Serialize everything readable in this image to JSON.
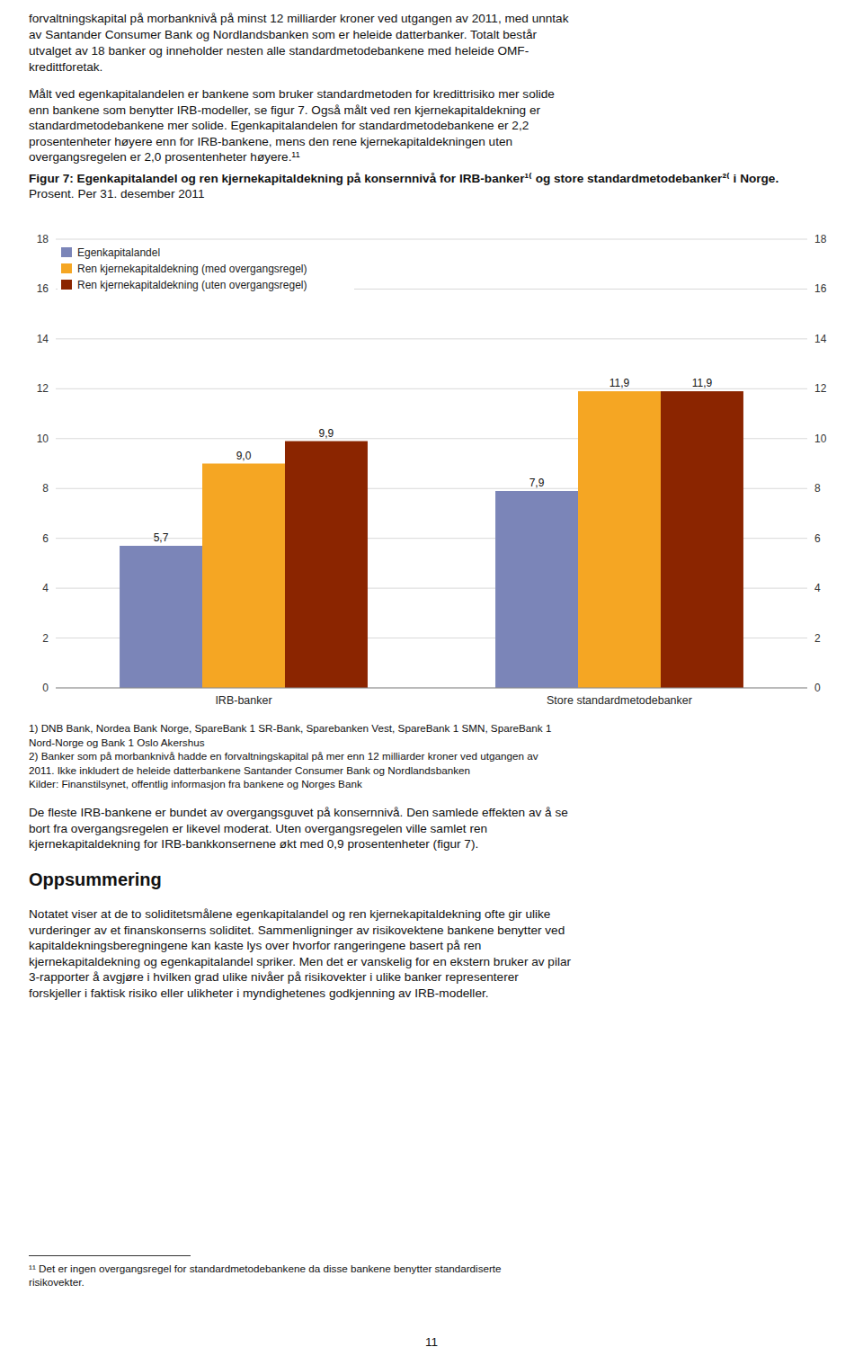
{
  "text_above": [
    "forvaltningskapital på morbanknivå på minst 12 milliarder kroner ved utgangen av 2011, med unntak",
    "av Santander Consumer Bank og Nordlandsbanken som er heleide datterbanker. Totalt består",
    "utvalget av 18 banker og inneholder nesten alle standardmetodebankene med heleide OMF-",
    "kredittforetak."
  ],
  "paragraph1": [
    "Målt ved egenkapitalandelen er bankene som bruker standardmetoden for kredittrisiko mer solide",
    "enn bankene som benytter IRB-modeller, se figur 7. Også målt ved ren kjernekapitaldekning er",
    "standardmetodebankene mer solide. Egenkapitalandelen for standardmetodebankene er 2,2",
    "prosentenheter høyere enn for IRB-bankene, mens den rene kjernekapitaldekningen uten",
    "overgangsregelen er 2,0 prosentenheter høyere.¹¹"
  ],
  "chart_data": {
    "type": "bar",
    "title": "Figur 7: Egenkapitalandel og ren kjernekapitaldekning på konsernnivå for IRB-banker¹⁽ og store standardmetodebanker²⁽ i Norge.",
    "subtitle": "Prosent. Per 31. desember 2011",
    "categories": [
      "IRB-banker",
      "Store standardmetodebanker"
    ],
    "series": [
      {
        "name": "Egenkapitalandel",
        "color": "#7B85B8",
        "values": [
          5.7,
          7.9
        ],
        "value_labels": [
          "5,7",
          "7,9"
        ]
      },
      {
        "name": "Ren kjernekapitaldekning (med overgangsregel)",
        "color": "#F5A623",
        "values": [
          9.0,
          11.9
        ],
        "value_labels": [
          "9,0",
          "11,9"
        ]
      },
      {
        "name": "Ren kjernekapitaldekning (uten overgangsregel)",
        "color": "#8B2500",
        "values": [
          9.9,
          11.9
        ],
        "value_labels": [
          "9,9",
          "11,9"
        ]
      }
    ],
    "ylim": [
      0,
      18
    ],
    "yticks": [
      0,
      2,
      4,
      6,
      8,
      10,
      12,
      14,
      16,
      18
    ],
    "y2lim": [
      0,
      18
    ],
    "y2ticks": [
      0,
      2,
      4,
      6,
      8,
      10,
      12,
      14,
      16,
      18
    ],
    "grid": true,
    "legend": "upper left",
    "data_labels": true,
    "notes": [
      "1) DNB Bank, Nordea Bank Norge, SpareBank 1 SR-Bank, Sparebanken Vest, SpareBank 1 SMN, SpareBank 1",
      "Nord-Norge og Bank 1 Oslo Akershus",
      "2) Banker som på morbanknivå hadde en forvaltningskapital på mer enn 12 milliarder kroner ved utgangen av",
      "2011. Ikke inkludert de heleide datterbankene Santander Consumer Bank og Nordlandsbanken",
      "Kilder: Finanstilsynet, offentlig informasjon fra bankene og Norges Bank"
    ]
  },
  "paragraph2": [
    "De fleste IRB-bankene er bundet av overgangsguvet på konsernnivå. Den samlede effekten av å se",
    "bort fra overgangsregelen er likevel moderat. Uten overgangsregelen ville samlet ren",
    "kjernekapitaldekning for IRB-bankkonsernene økt med 0,9 prosentenheter (figur 7)."
  ],
  "heading": "Oppsummering",
  "paragraph3": [
    "Notatet viser at de to soliditetsmålene egenkapitalandel og ren kjernekapitaldekning ofte gir ulike",
    "vurderinger av et finanskonserns soliditet. Sammenligninger av risikovektene bankene benytter ved",
    "kapitaldekningsberegningene kan kaste lys over hvorfor rangeringene basert på ren",
    "kjernekapitaldekning og egenkapitalandel spriker. Men det er vanskelig for en ekstern bruker av pilar",
    "3-rapporter å avgjøre i hvilken grad ulike nivåer på risikovekter i ulike banker representerer",
    "forskjeller i faktisk risiko eller ulikheter i myndighetenes godkjenning av IRB-modeller."
  ],
  "footnote": [
    "¹¹  Det er ingen overgangsregel for standardmetodebankene da disse bankene benytter standardiserte",
    "risikovekter."
  ],
  "page_number": "11"
}
